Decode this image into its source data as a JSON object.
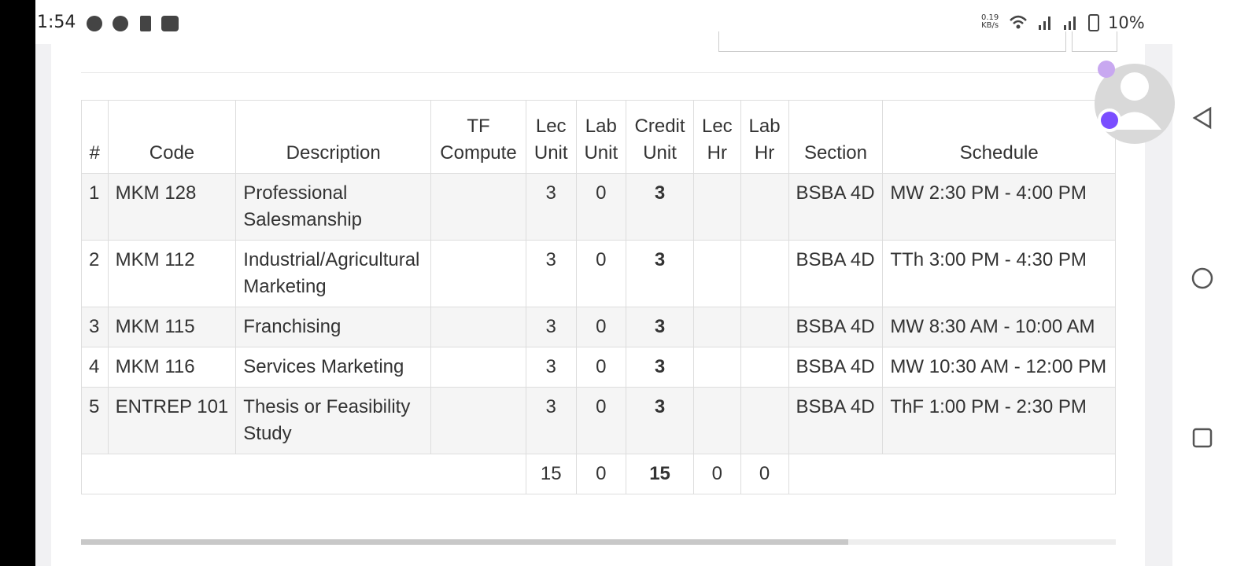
{
  "status_bar": {
    "time": "1:54",
    "net_speed": "0.19",
    "net_unit": "KB/s",
    "battery": "10%"
  },
  "table": {
    "headers": [
      "#",
      "Code",
      "Description",
      "TF Compute",
      "Lec Unit",
      "Lab Unit",
      "Credit Unit",
      "Lec Hr",
      "Lab Hr",
      "Section",
      "Schedule"
    ],
    "rows": [
      {
        "num": "1",
        "code": "MKM 128",
        "description": "Professional Salesmanship",
        "lec_unit": 3,
        "lab_unit": 0,
        "credit_unit": 3,
        "section": "BSBA 4D",
        "schedule": "MW 2:30 PM - 4:00 PM"
      },
      {
        "num": "2",
        "code": "MKM 112",
        "description": "Industrial/Agricultural Marketing",
        "lec_unit": 3,
        "lab_unit": 0,
        "credit_unit": 3,
        "section": "BSBA 4D",
        "schedule": "TTh 3:00 PM - 4:30 PM"
      },
      {
        "num": "3",
        "code": "MKM 115",
        "description": "Franchising",
        "lec_unit": 3,
        "lab_unit": 0,
        "credit_unit": 3,
        "section": "BSBA 4D",
        "schedule": "MW 8:30 AM - 10:00 AM"
      },
      {
        "num": "4",
        "code": "MKM 116",
        "description": "Services Marketing",
        "lec_unit": 3,
        "lab_unit": 0,
        "credit_unit": 3,
        "section": "BSBA 4D",
        "schedule": "MW 10:30 AM - 12:00 PM"
      },
      {
        "num": "5",
        "code": "ENTREP 101",
        "description": "Thesis or Feasibility Study",
        "lec_unit": 3,
        "lab_unit": 0,
        "credit_unit": 3,
        "section": "BSBA 4D",
        "schedule": "ThF 1:00 PM - 2:30 PM"
      }
    ],
    "totals": {
      "lec_unit": 15,
      "lab_unit": 0,
      "credit_unit": 15,
      "lec_hr": 0,
      "lab_hr": 0
    }
  }
}
